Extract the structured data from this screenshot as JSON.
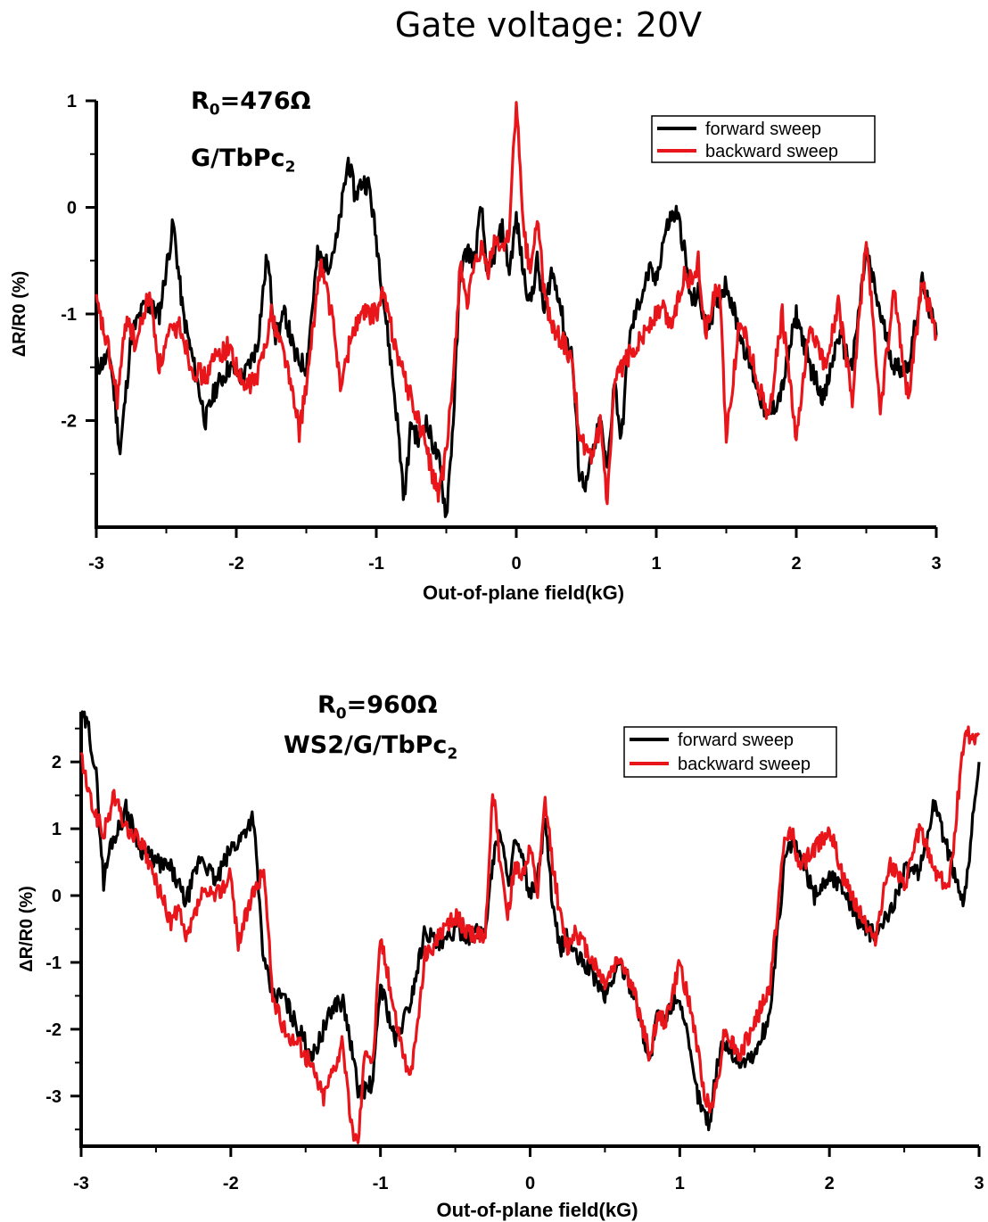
{
  "figure_title": "Gate voltage: 20V",
  "colors": {
    "forward": "#000000",
    "backward": "#e8151b",
    "axis": "#000000"
  },
  "chart_data": [
    {
      "type": "line",
      "title": "",
      "xlabel": "Out-of-plane field(kG)",
      "ylabel": "ΔR/R0 (%)",
      "xlim": [
        -3,
        3
      ],
      "ylim": [
        -3.0,
        1.0
      ],
      "xticks": [
        "-3",
        "-2",
        "-1",
        "0",
        "1",
        "2",
        "3"
      ],
      "yticks": [
        "1",
        "0",
        "-1",
        "-2"
      ],
      "annotations": {
        "r0": {
          "main": "R",
          "sub": "0",
          "rest": "=476Ω"
        },
        "sample": {
          "main": "G/TbPc",
          "sub": "2"
        }
      },
      "legend_position": "top-right",
      "legend": [
        "forward sweep",
        "backward sweep"
      ],
      "series": [
        {
          "name": "forward sweep",
          "x": [
            -3.0,
            -2.9,
            -2.83,
            -2.75,
            -2.65,
            -2.55,
            -2.45,
            -2.38,
            -2.3,
            -2.22,
            -2.15,
            -2.05,
            -1.95,
            -1.85,
            -1.78,
            -1.72,
            -1.65,
            -1.58,
            -1.5,
            -1.42,
            -1.35,
            -1.28,
            -1.2,
            -1.15,
            -1.1,
            -1.05,
            -0.98,
            -0.9,
            -0.85,
            -0.8,
            -0.75,
            -0.7,
            -0.65,
            -0.6,
            -0.55,
            -0.5,
            -0.45,
            -0.4,
            -0.35,
            -0.3,
            -0.25,
            -0.2,
            -0.15,
            -0.1,
            -0.05,
            0.0,
            0.05,
            0.1,
            0.15,
            0.2,
            0.25,
            0.3,
            0.35,
            0.4,
            0.45,
            0.5,
            0.55,
            0.6,
            0.65,
            0.7,
            0.75,
            0.8,
            0.85,
            0.9,
            0.95,
            1.0,
            1.05,
            1.1,
            1.15,
            1.2,
            1.25,
            1.3,
            1.35,
            1.4,
            1.5,
            1.6,
            1.7,
            1.8,
            1.9,
            2.0,
            2.1,
            2.2,
            2.3,
            2.4,
            2.5,
            2.6,
            2.7,
            2.8,
            2.9,
            3.0
          ],
          "y": [
            -1.5,
            -1.4,
            -2.3,
            -1.2,
            -0.9,
            -1.0,
            -0.15,
            -1.0,
            -1.5,
            -2.0,
            -1.7,
            -1.5,
            -1.6,
            -1.3,
            -0.45,
            -1.2,
            -1.0,
            -1.4,
            -1.5,
            -0.45,
            -0.55,
            -0.3,
            0.45,
            0.1,
            0.25,
            0.2,
            -0.5,
            -1.4,
            -2.0,
            -2.75,
            -2.0,
            -2.2,
            -2.0,
            -2.2,
            -2.4,
            -2.9,
            -2.0,
            -0.6,
            -0.4,
            -0.5,
            0.0,
            -0.7,
            -0.4,
            -0.2,
            -0.6,
            -0.1,
            -0.6,
            -0.9,
            -0.5,
            -1.0,
            -0.6,
            -0.8,
            -1.2,
            -1.4,
            -2.5,
            -2.6,
            -2.3,
            -2.0,
            -2.5,
            -1.6,
            -2.2,
            -1.3,
            -1.0,
            -0.8,
            -0.6,
            -0.7,
            -0.3,
            -0.1,
            -0.05,
            -0.4,
            -0.9,
            -0.8,
            -1.1,
            -1.0,
            -0.7,
            -1.2,
            -1.6,
            -2.0,
            -1.7,
            -1.0,
            -1.5,
            -1.8,
            -1.2,
            -1.5,
            -0.4,
            -1.0,
            -1.5,
            -1.5,
            -0.7,
            -1.2
          ]
        },
        {
          "name": "backward sweep",
          "x": [
            -3.0,
            -2.92,
            -2.85,
            -2.78,
            -2.72,
            -2.62,
            -2.55,
            -2.48,
            -2.4,
            -2.32,
            -2.22,
            -2.15,
            -2.05,
            -1.95,
            -1.85,
            -1.75,
            -1.65,
            -1.55,
            -1.48,
            -1.4,
            -1.32,
            -1.25,
            -1.18,
            -1.1,
            -1.0,
            -0.95,
            -0.88,
            -0.8,
            -0.75,
            -0.7,
            -0.65,
            -0.6,
            -0.55,
            -0.5,
            -0.45,
            -0.4,
            -0.35,
            -0.3,
            -0.25,
            -0.2,
            -0.15,
            -0.1,
            -0.05,
            0.0,
            0.05,
            0.1,
            0.15,
            0.2,
            0.25,
            0.3,
            0.35,
            0.4,
            0.45,
            0.5,
            0.55,
            0.6,
            0.65,
            0.7,
            0.75,
            0.8,
            0.85,
            0.9,
            0.95,
            1.0,
            1.05,
            1.1,
            1.15,
            1.2,
            1.25,
            1.3,
            1.35,
            1.4,
            1.45,
            1.5,
            1.6,
            1.7,
            1.8,
            1.9,
            2.0,
            2.1,
            2.2,
            2.3,
            2.4,
            2.5,
            2.6,
            2.7,
            2.8,
            2.9,
            3.0
          ],
          "y": [
            -0.9,
            -1.3,
            -1.8,
            -1.0,
            -1.3,
            -0.8,
            -1.5,
            -1.2,
            -1.1,
            -1.5,
            -1.6,
            -1.4,
            -1.3,
            -1.7,
            -1.6,
            -1.0,
            -1.4,
            -2.1,
            -1.5,
            -0.5,
            -1.0,
            -1.7,
            -1.2,
            -1.0,
            -1.0,
            -0.8,
            -1.2,
            -1.6,
            -1.8,
            -2.0,
            -2.2,
            -2.5,
            -2.7,
            -2.3,
            -1.6,
            -0.5,
            -0.9,
            -0.6,
            -0.4,
            -0.6,
            -0.3,
            -0.4,
            -0.2,
            1.0,
            -0.2,
            -0.6,
            -0.1,
            -0.8,
            -1.1,
            -1.2,
            -1.3,
            -1.5,
            -2.1,
            -2.3,
            -2.4,
            -2.0,
            -2.8,
            -1.7,
            -1.5,
            -1.4,
            -1.3,
            -1.2,
            -1.1,
            -1.0,
            -0.95,
            -1.1,
            -0.9,
            -0.6,
            -0.7,
            -0.5,
            -1.2,
            -0.9,
            -0.7,
            -2.2,
            -1.0,
            -1.5,
            -2.0,
            -1.0,
            -2.2,
            -1.1,
            -1.5,
            -0.9,
            -1.8,
            -0.3,
            -1.9,
            -0.8,
            -1.8,
            -0.7,
            -1.2
          ]
        }
      ]
    },
    {
      "type": "line",
      "title": "",
      "xlabel": "Out-of-plane field(kG)",
      "ylabel": "ΔR/R0 (%)",
      "xlim": [
        -3,
        3
      ],
      "ylim": [
        -3.75,
        2.75
      ],
      "xticks": [
        "-3",
        "-2",
        "-1",
        "0",
        "1",
        "2",
        "3"
      ],
      "yticks": [
        "2",
        "1",
        "0",
        "-1",
        "-2",
        "-3"
      ],
      "annotations": {
        "r0": {
          "main": "R",
          "sub": "0",
          "rest": "=960Ω"
        },
        "sample": {
          "main": "WS2/G/TbPc",
          "sub": "2"
        }
      },
      "legend_position": "top-right",
      "legend": [
        "forward sweep",
        "backward sweep"
      ],
      "series": [
        {
          "name": "forward sweep",
          "x": [
            -3.0,
            -2.95,
            -2.9,
            -2.85,
            -2.8,
            -2.75,
            -2.7,
            -2.6,
            -2.5,
            -2.4,
            -2.3,
            -2.2,
            -2.1,
            -2.0,
            -1.95,
            -1.85,
            -1.78,
            -1.72,
            -1.65,
            -1.55,
            -1.45,
            -1.38,
            -1.3,
            -1.25,
            -1.2,
            -1.15,
            -1.1,
            -1.05,
            -1.0,
            -0.9,
            -0.8,
            -0.7,
            -0.6,
            -0.5,
            -0.4,
            -0.3,
            -0.25,
            -0.2,
            -0.15,
            -0.1,
            -0.05,
            0.0,
            0.05,
            0.1,
            0.15,
            0.2,
            0.25,
            0.3,
            0.4,
            0.5,
            0.6,
            0.7,
            0.8,
            0.85,
            0.9,
            0.95,
            1.0,
            1.1,
            1.15,
            1.2,
            1.25,
            1.3,
            1.4,
            1.5,
            1.6,
            1.7,
            1.75,
            1.8,
            1.9,
            2.0,
            2.1,
            2.2,
            2.3,
            2.4,
            2.5,
            2.6,
            2.7,
            2.8,
            2.9,
            3.0
          ],
          "y": [
            2.7,
            2.5,
            1.8,
            0.2,
            0.8,
            1.0,
            1.3,
            0.7,
            0.5,
            0.4,
            -0.1,
            0.6,
            0.2,
            0.7,
            0.8,
            1.2,
            -1.0,
            -1.5,
            -1.5,
            -2.0,
            -2.4,
            -2.0,
            -1.6,
            -1.6,
            -2.2,
            -2.9,
            -2.9,
            -2.8,
            -1.3,
            -2.2,
            -1.6,
            -0.5,
            -0.8,
            -0.5,
            -0.6,
            -0.5,
            0.5,
            1.0,
            0.2,
            0.8,
            0.5,
            0.0,
            0.2,
            1.2,
            -0.2,
            -0.8,
            -0.6,
            -0.9,
            -1.1,
            -1.5,
            -1.0,
            -1.5,
            -2.5,
            -1.8,
            -1.9,
            -1.6,
            -1.5,
            -2.8,
            -3.2,
            -3.4,
            -2.5,
            -2.2,
            -2.5,
            -2.4,
            -1.8,
            0.5,
            0.8,
            0.6,
            0.0,
            0.3,
            0.1,
            -0.4,
            -0.6,
            -0.3,
            0.4,
            0.3,
            1.4,
            0.6,
            -0.1,
            2.0
          ]
        },
        {
          "name": "backward sweep",
          "x": [
            -3.0,
            -2.95,
            -2.9,
            -2.85,
            -2.78,
            -2.7,
            -2.6,
            -2.5,
            -2.4,
            -2.35,
            -2.3,
            -2.2,
            -2.1,
            -2.0,
            -1.95,
            -1.9,
            -1.85,
            -1.78,
            -1.72,
            -1.65,
            -1.55,
            -1.45,
            -1.38,
            -1.32,
            -1.25,
            -1.2,
            -1.15,
            -1.1,
            -1.05,
            -1.0,
            -0.9,
            -0.8,
            -0.7,
            -0.6,
            -0.5,
            -0.4,
            -0.3,
            -0.25,
            -0.2,
            -0.15,
            -0.1,
            -0.05,
            0.0,
            0.05,
            0.1,
            0.15,
            0.2,
            0.25,
            0.3,
            0.4,
            0.5,
            0.6,
            0.7,
            0.8,
            0.85,
            0.9,
            0.95,
            1.0,
            1.1,
            1.15,
            1.2,
            1.25,
            1.3,
            1.4,
            1.5,
            1.6,
            1.7,
            1.75,
            1.8,
            1.9,
            2.0,
            2.1,
            2.2,
            2.3,
            2.4,
            2.5,
            2.6,
            2.7,
            2.8,
            2.9,
            3.0
          ],
          "y": [
            2.1,
            1.5,
            1.2,
            0.9,
            1.5,
            1.0,
            0.8,
            0.2,
            -0.4,
            -0.2,
            -0.7,
            0.0,
            0.0,
            0.3,
            -0.7,
            -0.3,
            0.0,
            0.4,
            -1.5,
            -2.0,
            -2.2,
            -2.6,
            -3.0,
            -2.6,
            -2.2,
            -3.4,
            -3.7,
            -2.2,
            -2.5,
            -0.6,
            -1.8,
            -2.8,
            -0.9,
            -0.6,
            -0.3,
            -0.6,
            -0.6,
            1.6,
            0.5,
            -0.3,
            0.5,
            0.3,
            0.7,
            0.0,
            1.4,
            0.5,
            -0.3,
            -0.8,
            -0.5,
            -0.9,
            -1.3,
            -0.9,
            -1.5,
            -2.4,
            -1.8,
            -1.9,
            -1.5,
            -1.0,
            -2.0,
            -2.8,
            -3.2,
            -2.8,
            -2.0,
            -2.4,
            -1.9,
            -1.4,
            0.8,
            1.0,
            0.4,
            0.7,
            1.0,
            0.2,
            -0.2,
            -0.7,
            0.5,
            0.1,
            1.0,
            0.4,
            0.1,
            2.4,
            2.4
          ]
        }
      ]
    }
  ]
}
